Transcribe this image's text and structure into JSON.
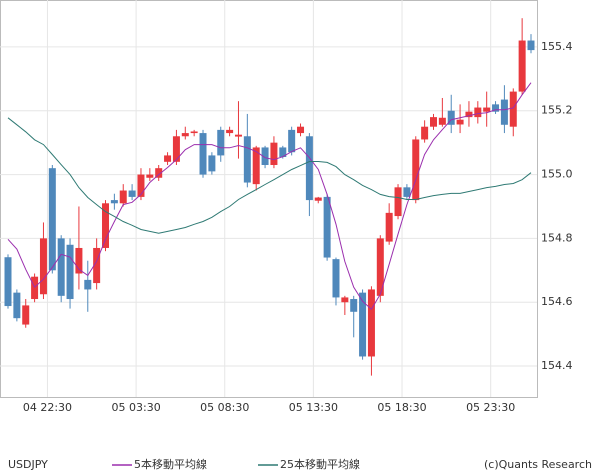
{
  "chart_data": {
    "type": "candlestick",
    "symbol": "USDJPY",
    "credit": "(c)Quants Research",
    "up_color": "#e8383d",
    "down_color": "#4f88bb",
    "categories": [
      null,
      null,
      null,
      null,
      "04 22:30",
      null,
      null,
      null,
      null,
      null,
      null,
      null,
      null,
      null,
      "05 03:30",
      null,
      null,
      null,
      null,
      null,
      null,
      null,
      null,
      null,
      "05 08:30",
      null,
      null,
      null,
      null,
      null,
      null,
      null,
      null,
      null,
      "05 13:30",
      null,
      null,
      null,
      null,
      null,
      null,
      null,
      null,
      null,
      "05 18:30",
      null,
      null,
      null,
      null,
      null,
      null,
      null,
      null,
      null,
      "05 23:30",
      null,
      null,
      null,
      null,
      null
    ],
    "open": [
      154.741,
      154.63,
      154.53,
      154.61,
      154.625,
      155.02,
      154.8,
      154.78,
      154.69,
      154.67,
      154.66,
      154.77,
      154.92,
      154.91,
      154.95,
      154.93,
      154.99,
      154.99,
      155.04,
      155.04,
      155.12,
      155.13,
      155.13,
      155.06,
      155.14,
      155.13,
      155.119,
      155.12,
      154.97,
      155.085,
      155.03,
      155.085,
      155.14,
      155.13,
      155.12,
      154.918,
      154.93,
      154.735,
      154.6,
      154.61,
      154.63,
      154.43,
      154.62,
      154.79,
      154.87,
      154.96,
      154.92,
      155.11,
      155.15,
      155.156,
      155.2,
      155.157,
      155.18,
      155.18,
      155.197,
      155.22,
      155.235,
      155.15,
      155.26,
      155.42
    ],
    "high": [
      154.75,
      154.64,
      154.61,
      154.69,
      154.85,
      155.03,
      154.81,
      154.8,
      154.9,
      154.73,
      154.8,
      154.92,
      154.94,
      154.97,
      154.97,
      155.02,
      155.02,
      155.03,
      155.07,
      155.14,
      155.15,
      155.14,
      155.14,
      155.07,
      155.15,
      155.15,
      155.23,
      155.19,
      155.09,
      155.09,
      155.12,
      155.09,
      155.15,
      155.16,
      155.13,
      154.93,
      154.94,
      154.74,
      154.62,
      154.62,
      154.64,
      154.65,
      154.81,
      154.91,
      154.97,
      154.97,
      155.12,
      155.17,
      155.19,
      155.24,
      155.25,
      155.22,
      155.23,
      155.23,
      155.26,
      155.23,
      155.28,
      155.27,
      155.49,
      155.44
    ],
    "low": [
      154.58,
      154.54,
      154.52,
      154.6,
      154.61,
      154.69,
      154.6,
      154.58,
      154.64,
      154.57,
      154.64,
      154.76,
      154.89,
      154.9,
      154.92,
      154.92,
      154.98,
      154.98,
      155.03,
      155.03,
      155.11,
      155.12,
      154.99,
      155.0,
      155.04,
      155.12,
      155.05,
      154.96,
      154.95,
      155.02,
      155.02,
      155.05,
      155.06,
      155.12,
      154.87,
      154.91,
      154.73,
      154.59,
      154.56,
      154.49,
      154.42,
      154.37,
      154.6,
      154.78,
      154.86,
      154.92,
      154.91,
      155.1,
      155.14,
      155.15,
      155.13,
      155.13,
      155.15,
      155.16,
      155.15,
      155.19,
      155.13,
      155.12,
      155.25,
      155.38
    ],
    "close": [
      154.588,
      154.55,
      154.59,
      154.68,
      154.8,
      154.7,
      154.62,
      154.61,
      154.77,
      154.64,
      154.77,
      154.91,
      154.91,
      154.95,
      154.93,
      155.0,
      155.0,
      155.02,
      155.06,
      155.12,
      155.13,
      155.135,
      155.0,
      155.01,
      155.06,
      155.14,
      155.125,
      154.975,
      155.085,
      155.03,
      155.1,
      155.055,
      155.07,
      155.15,
      154.92,
      154.928,
      154.74,
      154.615,
      154.615,
      154.57,
      154.43,
      154.64,
      154.8,
      154.88,
      154.96,
      154.93,
      155.11,
      155.15,
      155.18,
      155.178,
      155.156,
      155.172,
      155.197,
      155.21,
      155.21,
      155.197,
      155.156,
      155.26,
      155.42,
      155.39
    ],
    "series": [
      {
        "name": "5本移動平均線",
        "color": "#9b2fae",
        "values": [
          154.797,
          154.766,
          154.703,
          154.647,
          154.672,
          154.709,
          154.75,
          154.741,
          154.703,
          154.684,
          154.728,
          154.797,
          154.853,
          154.906,
          154.913,
          154.938,
          154.975,
          155.0,
          155.022,
          155.047,
          155.078,
          155.094,
          155.094,
          155.094,
          155.084,
          155.084,
          155.091,
          155.084,
          155.072,
          155.053,
          155.047,
          155.056,
          155.072,
          155.084,
          155.053,
          155.016,
          154.938,
          154.844,
          154.728,
          154.647,
          154.603,
          154.578,
          154.625,
          154.719,
          154.813,
          154.906,
          154.984,
          155.063,
          155.109,
          155.141,
          155.172,
          155.178,
          155.184,
          155.191,
          155.194,
          155.203,
          155.203,
          155.209,
          155.25,
          155.288
        ]
      },
      {
        "name": "25本移動平均線",
        "color": "#2f7a74",
        "values": [
          155.178,
          155.156,
          155.134,
          155.109,
          155.094,
          155.063,
          155.031,
          155.0,
          154.959,
          154.928,
          154.906,
          154.884,
          154.869,
          154.853,
          154.841,
          154.828,
          154.822,
          154.816,
          154.822,
          154.828,
          154.834,
          154.844,
          154.853,
          154.866,
          154.884,
          154.9,
          154.922,
          154.938,
          154.953,
          154.969,
          154.984,
          155.0,
          155.016,
          155.028,
          155.041,
          155.041,
          155.038,
          155.025,
          155.0,
          154.984,
          154.966,
          154.953,
          154.938,
          154.931,
          154.928,
          154.922,
          154.922,
          154.928,
          154.934,
          154.938,
          154.941,
          154.941,
          154.947,
          154.953,
          154.959,
          154.963,
          154.969,
          154.972,
          154.984,
          155.006
        ]
      }
    ],
    "ylim": [
      154.303,
      155.547
    ],
    "yticks": [
      154.4,
      154.6,
      154.8,
      {
        "value": 155,
        "label": "155.0"
      },
      155.2,
      155.4
    ],
    "grid": true
  }
}
